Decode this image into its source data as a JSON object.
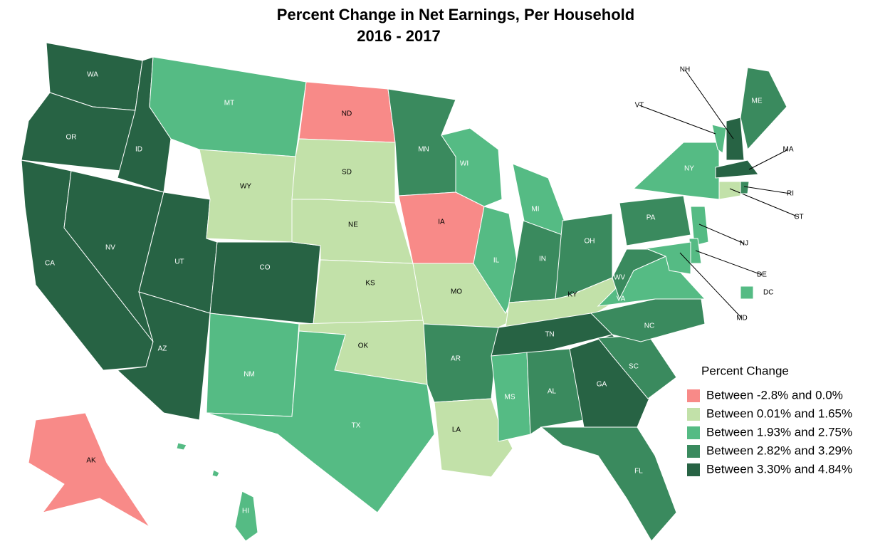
{
  "chart_data": {
    "type": "choropleth",
    "title": [
      "Percent Change in Net Earnings, Per Household",
      "2016 - 2017"
    ],
    "legend_title": "Percent Change",
    "legend": [
      {
        "label": "Between -2.8% and 0.0%",
        "color": "#f88a88"
      },
      {
        "label": "Between 0.01% and 1.65%",
        "color": "#c2e1a9"
      },
      {
        "label": "Between 1.93% and 2.75%",
        "color": "#55bb84"
      },
      {
        "label": "Between 2.82% and 3.29%",
        "color": "#3a8a5e"
      },
      {
        "label": "Between 3.30% and 4.84%",
        "color": "#276344"
      }
    ],
    "states": [
      {
        "label": "WA",
        "class": 4
      },
      {
        "label": "OR",
        "class": 4
      },
      {
        "label": "ID",
        "class": 4
      },
      {
        "label": "CA",
        "class": 4
      },
      {
        "label": "NV",
        "class": 4
      },
      {
        "label": "UT",
        "class": 4
      },
      {
        "label": "AZ",
        "class": 4
      },
      {
        "label": "MT",
        "class": 2
      },
      {
        "label": "WY",
        "class": 1
      },
      {
        "label": "CO",
        "class": 4
      },
      {
        "label": "NM",
        "class": 2
      },
      {
        "label": "ND",
        "class": 0
      },
      {
        "label": "SD",
        "class": 1
      },
      {
        "label": "NE",
        "class": 1
      },
      {
        "label": "KS",
        "class": 1
      },
      {
        "label": "OK",
        "class": 1
      },
      {
        "label": "TX",
        "class": 2
      },
      {
        "label": "MN",
        "class": 3
      },
      {
        "label": "IA",
        "class": 0
      },
      {
        "label": "MO",
        "class": 1
      },
      {
        "label": "AR",
        "class": 3
      },
      {
        "label": "LA",
        "class": 1
      },
      {
        "label": "WI",
        "class": 2
      },
      {
        "label": "IL",
        "class": 2
      },
      {
        "label": "MI",
        "class": 2
      },
      {
        "label": "IN",
        "class": 3
      },
      {
        "label": "OH",
        "class": 3
      },
      {
        "label": "KY",
        "class": 1
      },
      {
        "label": "TN",
        "class": 4
      },
      {
        "label": "MS",
        "class": 2
      },
      {
        "label": "AL",
        "class": 3
      },
      {
        "label": "GA",
        "class": 4
      },
      {
        "label": "FL",
        "class": 3
      },
      {
        "label": "SC",
        "class": 3
      },
      {
        "label": "NC",
        "class": 3
      },
      {
        "label": "VA",
        "class": 2
      },
      {
        "label": "WV",
        "class": 3
      },
      {
        "label": "PA",
        "class": 3
      },
      {
        "label": "NY",
        "class": 2
      },
      {
        "label": "VT",
        "class": 2
      },
      {
        "label": "NH",
        "class": 4
      },
      {
        "label": "ME",
        "class": 3
      },
      {
        "label": "MA",
        "class": 4
      },
      {
        "label": "CT",
        "class": 1
      },
      {
        "label": "RI",
        "class": 3
      },
      {
        "label": "NJ",
        "class": 2
      },
      {
        "label": "DE",
        "class": 2
      },
      {
        "label": "MD",
        "class": 2
      },
      {
        "label": "DC",
        "class": 2
      },
      {
        "label": "AK",
        "class": 0
      },
      {
        "label": "HI",
        "class": 2
      }
    ]
  }
}
